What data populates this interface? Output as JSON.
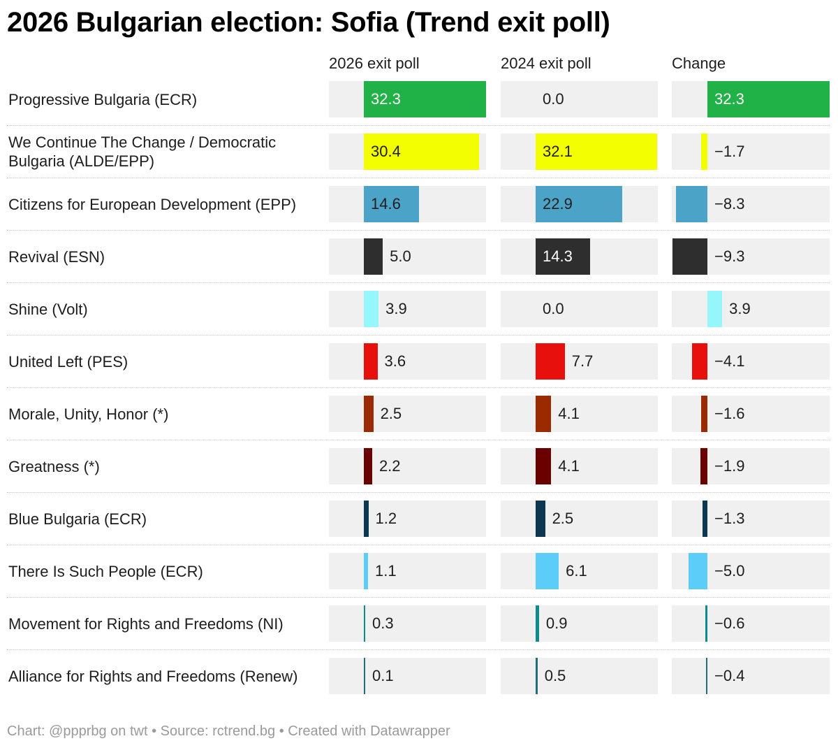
{
  "title": "2026 Bulgarian election: Sofia (Trend exit poll)",
  "columns": [
    "2026 exit poll",
    "2024 exit poll",
    "Change"
  ],
  "footer": "Chart: @ppprbg on twt • Source: rctrend.bg • Created with Datawrapper",
  "chart_data": {
    "type": "table",
    "rows": [
      {
        "party": "Progressive Bulgaria (ECR)",
        "poll_2026": 32.3,
        "poll_2024": 0.0,
        "change": 32.3,
        "change_label": "32.3",
        "color": "#20b147"
      },
      {
        "party": "We Continue The Change / Democratic Bulgaria (ALDE/EPP)",
        "poll_2026": 30.4,
        "poll_2024": 32.1,
        "change": -1.7,
        "change_label": "−1.7",
        "color": "#f3ff00"
      },
      {
        "party": "Citizens for European Development (EPP)",
        "poll_2026": 14.6,
        "poll_2024": 22.9,
        "change": -8.3,
        "change_label": "−8.3",
        "color": "#4ba4c8"
      },
      {
        "party": "Revival (ESN)",
        "poll_2026": 5.0,
        "poll_2024": 14.3,
        "change": -9.3,
        "change_label": "−9.3",
        "color": "#2e2e2e"
      },
      {
        "party": "Shine (Volt)",
        "poll_2026": 3.9,
        "poll_2024": 0.0,
        "change": 3.9,
        "change_label": "3.9",
        "color": "#95f6fb"
      },
      {
        "party": "United Left (PES)",
        "poll_2026": 3.6,
        "poll_2024": 7.7,
        "change": -4.1,
        "change_label": "−4.1",
        "color": "#e8100c"
      },
      {
        "party": "Morale, Unity, Honor (*)",
        "poll_2026": 2.5,
        "poll_2024": 4.1,
        "change": -1.6,
        "change_label": "−1.6",
        "color": "#9b2a00"
      },
      {
        "party": "Greatness (*)",
        "poll_2026": 2.2,
        "poll_2024": 4.1,
        "change": -1.9,
        "change_label": "−1.9",
        "color": "#6b0000"
      },
      {
        "party": "Blue Bulgaria (ECR)",
        "poll_2026": 1.2,
        "poll_2024": 2.5,
        "change": -1.3,
        "change_label": "−1.3",
        "color": "#0b3750"
      },
      {
        "party": "There Is Such People (ECR)",
        "poll_2026": 1.1,
        "poll_2024": 6.1,
        "change": -5.0,
        "change_label": "−5.0",
        "color": "#5ccdf9"
      },
      {
        "party": "Movement for Rights and Freedoms (NI)",
        "poll_2026": 0.3,
        "poll_2024": 0.9,
        "change": -0.6,
        "change_label": "−0.6",
        "color": "#0d8a8a"
      },
      {
        "party": "Alliance for Rights and Freedoms (Renew)",
        "poll_2026": 0.1,
        "poll_2024": 0.5,
        "change": -0.4,
        "change_label": "−0.4",
        "color": "#1d6e7a"
      }
    ]
  }
}
